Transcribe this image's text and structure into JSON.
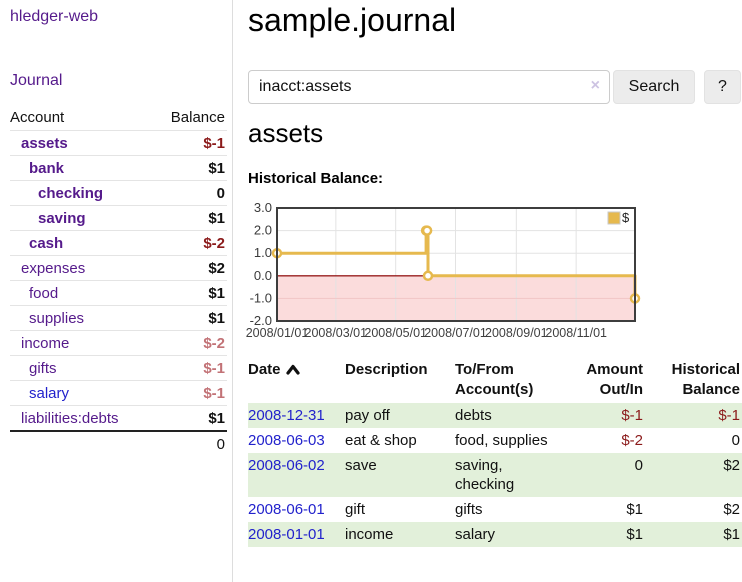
{
  "app": {
    "title": "hledger-web"
  },
  "sidebar": {
    "journal_label": "Journal",
    "headers": {
      "account": "Account",
      "balance": "Balance"
    },
    "accounts": [
      {
        "name": "assets",
        "balance": "$-1",
        "depth": 1,
        "bold": true,
        "balance_class": "neg-dark"
      },
      {
        "name": "bank",
        "balance": "$1",
        "depth": 2,
        "bold": true,
        "balance_class": "pos"
      },
      {
        "name": "checking",
        "balance": "0",
        "depth": 3,
        "bold": true,
        "balance_class": "pos"
      },
      {
        "name": "saving",
        "balance": "$1",
        "depth": 3,
        "bold": true,
        "balance_class": "pos"
      },
      {
        "name": "cash",
        "balance": "$-2",
        "depth": 2,
        "bold": true,
        "balance_class": "neg-dark"
      },
      {
        "name": "expenses",
        "balance": "$2",
        "depth": 1,
        "bold": false,
        "balance_class": "pos"
      },
      {
        "name": "food",
        "balance": "$1",
        "depth": 2,
        "bold": false,
        "balance_class": "pos"
      },
      {
        "name": "supplies",
        "balance": "$1",
        "depth": 2,
        "bold": false,
        "balance_class": "pos"
      },
      {
        "name": "income",
        "balance": "$-2",
        "depth": 1,
        "bold": false,
        "balance_class": "neg-light"
      },
      {
        "name": "gifts",
        "balance": "$-1",
        "depth": 2,
        "bold": false,
        "balance_class": "neg-light"
      },
      {
        "name": "salary",
        "balance": "$-1",
        "depth": 2,
        "bold": false,
        "balance_class": "neg-light",
        "blue": true
      },
      {
        "name": "liabilities:debts",
        "balance": "$1",
        "depth": 1,
        "bold": false,
        "balance_class": "pos"
      }
    ],
    "total": "0"
  },
  "main": {
    "title": "sample.journal",
    "search": {
      "value": "inacct:assets",
      "clear_icon": "×",
      "button_label": "Search",
      "help_label": "?"
    },
    "account_heading": "assets",
    "chart_heading": "Historical Balance:"
  },
  "chart_data": {
    "type": "line",
    "title": "Historical Balance:",
    "step": true,
    "x_range": [
      "2008-01-01",
      "2008-12-31"
    ],
    "y_range": [
      -2.0,
      3.0
    ],
    "x_ticks": [
      "2008/01/01",
      "2008/03/01",
      "2008/05/01",
      "2008/07/01",
      "2008/09/01",
      "2008/11/01"
    ],
    "y_ticks": [
      3.0,
      2.0,
      1.0,
      0.0,
      -1.0,
      -2.0
    ],
    "grid": true,
    "legend_position": "top-right",
    "series": [
      {
        "name": "$",
        "color": "#e6b94e",
        "points": [
          [
            "2008-01-01",
            1
          ],
          [
            "2008-06-01",
            2
          ],
          [
            "2008-06-02",
            2
          ],
          [
            "2008-06-03",
            0
          ],
          [
            "2008-12-31",
            -1
          ]
        ]
      }
    ],
    "colors": {
      "negative_region": "#fbdcdc",
      "zero_line": "#992020",
      "grid_line": "#e3e3e3",
      "grid_line_negative": "#f0c6c6",
      "border": "#3d3d3d"
    }
  },
  "register": {
    "headers": {
      "date": "Date",
      "description": "Description",
      "account": "To/From Account(s)",
      "amount": "Amount Out/In",
      "balance": "Historical Balance"
    },
    "rows": [
      {
        "date": "2008-12-31",
        "description": "pay off",
        "accounts": "debts",
        "amount": "$-1",
        "amount_neg": true,
        "balance": "$-1",
        "balance_neg": true
      },
      {
        "date": "2008-06-03",
        "description": "eat & shop",
        "accounts": "food, supplies",
        "amount": "$-2",
        "amount_neg": true,
        "balance": "0",
        "balance_neg": false
      },
      {
        "date": "2008-06-02",
        "description": "save",
        "accounts": "saving, checking",
        "amount": "0",
        "amount_neg": false,
        "balance": "$2",
        "balance_neg": false
      },
      {
        "date": "2008-06-01",
        "description": "gift",
        "accounts": "gifts",
        "amount": "$1",
        "amount_neg": false,
        "balance": "$2",
        "balance_neg": false
      },
      {
        "date": "2008-01-01",
        "description": "income",
        "accounts": "salary",
        "amount": "$1",
        "amount_neg": false,
        "balance": "$1",
        "balance_neg": false
      }
    ]
  }
}
